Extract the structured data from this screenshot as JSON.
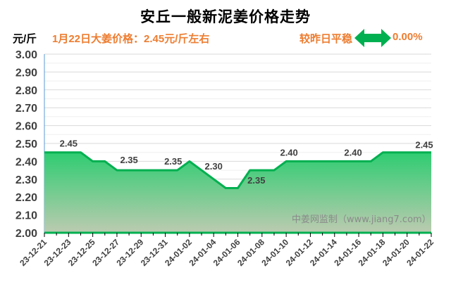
{
  "header": {
    "title": "安丘一般新泥姜价格走势",
    "unit": "元/斤",
    "price_note": "1月22日大姜价格：2.45元/斤左右",
    "compare_label": "较昨日平稳",
    "change": "0.00%",
    "arrow_icon": "double-arrow-icon",
    "arrow_color": "#00B050"
  },
  "watermark": "中姜网监制（www.jiang7.com）",
  "colors": {
    "line": "#00B050",
    "fill_top": "#2ECC71",
    "fill_bottom": "#BCCBB0",
    "accent_text": "#ED7D31",
    "axis_text": "#404040",
    "grid": "#D9D9D9"
  },
  "chart_data": {
    "type": "area",
    "title": "安丘一般新泥姜价格走势",
    "xlabel": "",
    "ylabel": "元/斤",
    "ylim": [
      2.0,
      3.0
    ],
    "yticks": [
      "3.00",
      "2.90",
      "2.80",
      "2.70",
      "2.60",
      "2.50",
      "2.40",
      "2.30",
      "2.20",
      "2.10",
      "2.00"
    ],
    "xticks": [
      "23-12-21",
      "23-12-23",
      "23-12-25",
      "23-12-27",
      "23-12-29",
      "23-12-31",
      "24-01-02",
      "24-01-04",
      "24-01-06",
      "24-01-08",
      "24-01-10",
      "24-01-12",
      "24-01-14",
      "24-01-16",
      "24-01-18",
      "24-01-20",
      "24-01-22"
    ],
    "grid": true,
    "legend": "none",
    "x": [
      "23-12-21",
      "23-12-22",
      "23-12-23",
      "23-12-24",
      "23-12-25",
      "23-12-26",
      "23-12-27",
      "23-12-28",
      "23-12-29",
      "23-12-30",
      "23-12-31",
      "24-01-01",
      "24-01-02",
      "24-01-03",
      "24-01-04",
      "24-01-05",
      "24-01-06",
      "24-01-07",
      "24-01-08",
      "24-01-09",
      "24-01-10",
      "24-01-11",
      "24-01-12",
      "24-01-13",
      "24-01-14",
      "24-01-15",
      "24-01-16",
      "24-01-17",
      "24-01-18",
      "24-01-19",
      "24-01-20",
      "24-01-21",
      "24-01-22"
    ],
    "series": [
      {
        "name": "安丘一般新泥姜价格",
        "values": [
          2.45,
          2.45,
          2.45,
          2.45,
          2.4,
          2.4,
          2.35,
          2.35,
          2.35,
          2.35,
          2.35,
          2.35,
          2.4,
          2.35,
          2.3,
          2.25,
          2.25,
          2.35,
          2.35,
          2.35,
          2.4,
          2.4,
          2.4,
          2.4,
          2.4,
          2.4,
          2.4,
          2.4,
          2.45,
          2.45,
          2.45,
          2.45,
          2.45
        ]
      }
    ],
    "annotations": [
      {
        "x": "23-12-23",
        "text": "2.45"
      },
      {
        "x": "23-12-28",
        "text": "2.35"
      },
      {
        "x": "24-01-01",
        "text": "2.35"
      },
      {
        "x": "24-01-04",
        "text": "2.30"
      },
      {
        "x": "24-01-08",
        "text": "2.35"
      },
      {
        "x": "24-01-10",
        "text": "2.40"
      },
      {
        "x": "24-01-16",
        "text": "2.40"
      },
      {
        "x": "24-01-22",
        "text": "2.45"
      }
    ]
  }
}
